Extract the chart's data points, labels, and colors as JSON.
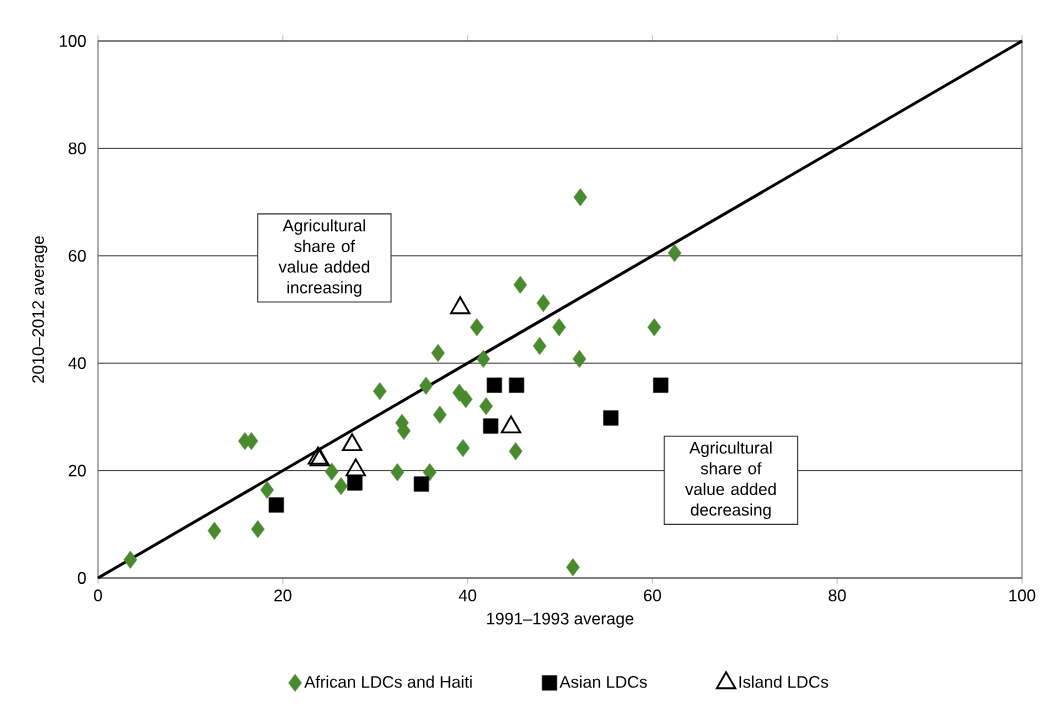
{
  "chart_data": {
    "type": "scatter",
    "xlabel": "1991–1993 average",
    "ylabel": "2010–2012 average",
    "xlim": [
      0,
      100
    ],
    "ylim": [
      0,
      100
    ],
    "xticks": [
      0,
      20,
      40,
      60,
      80,
      100
    ],
    "yticks": [
      0,
      20,
      40,
      60,
      80,
      100
    ],
    "grid": "y",
    "legend": "bottom",
    "annotations": [
      "Agricultural share of value added increasing",
      "Agricultural share of value added decreasing"
    ],
    "series": [
      {
        "name": "African LDCs and Haiti",
        "color": "#4a8a2e",
        "marker": "diamond",
        "x": [
          3.5,
          12.6,
          15.9,
          16.6,
          17.3,
          18.3,
          25.3,
          26.3,
          30.5,
          32.4,
          32.9,
          33.1,
          35.5,
          35.9,
          36.8,
          37.0,
          39.1,
          39.5,
          39.8,
          41.0,
          41.7,
          42.0,
          45.2,
          45.7,
          48.2,
          47.8,
          49.9,
          51.4,
          52.1,
          52.2,
          60.2,
          62.4
        ],
        "values": [
          3.4,
          8.8,
          25.5,
          25.5,
          9.1,
          16.4,
          19.8,
          17.1,
          34.8,
          19.7,
          28.9,
          27.4,
          35.8,
          19.7,
          41.9,
          30.4,
          34.5,
          24.2,
          33.3,
          46.7,
          40.8,
          32.0,
          23.6,
          54.6,
          51.2,
          43.2,
          46.7,
          2.0,
          40.8,
          70.9,
          46.7,
          60.5
        ]
      },
      {
        "name": "Asian LDCs",
        "color": "#000000",
        "marker": "square",
        "x": [
          19.3,
          27.8,
          35.0,
          42.5,
          42.9,
          45.3,
          55.5,
          60.9
        ],
        "values": [
          13.6,
          17.7,
          17.5,
          28.3,
          35.9,
          35.9,
          29.8,
          35.9
        ]
      },
      {
        "name": "Island LDCs",
        "color": "#000000",
        "marker": "triangle",
        "x": [
          23.8,
          24.0,
          27.5,
          27.9,
          39.2,
          44.7
        ],
        "values": [
          22.3,
          22.0,
          24.8,
          20.1,
          50.3,
          28.1
        ]
      },
      {
        "type": "line",
        "color": "#000000",
        "marker": "none",
        "x": [
          0,
          100
        ],
        "values": [
          0,
          100
        ]
      }
    ]
  }
}
